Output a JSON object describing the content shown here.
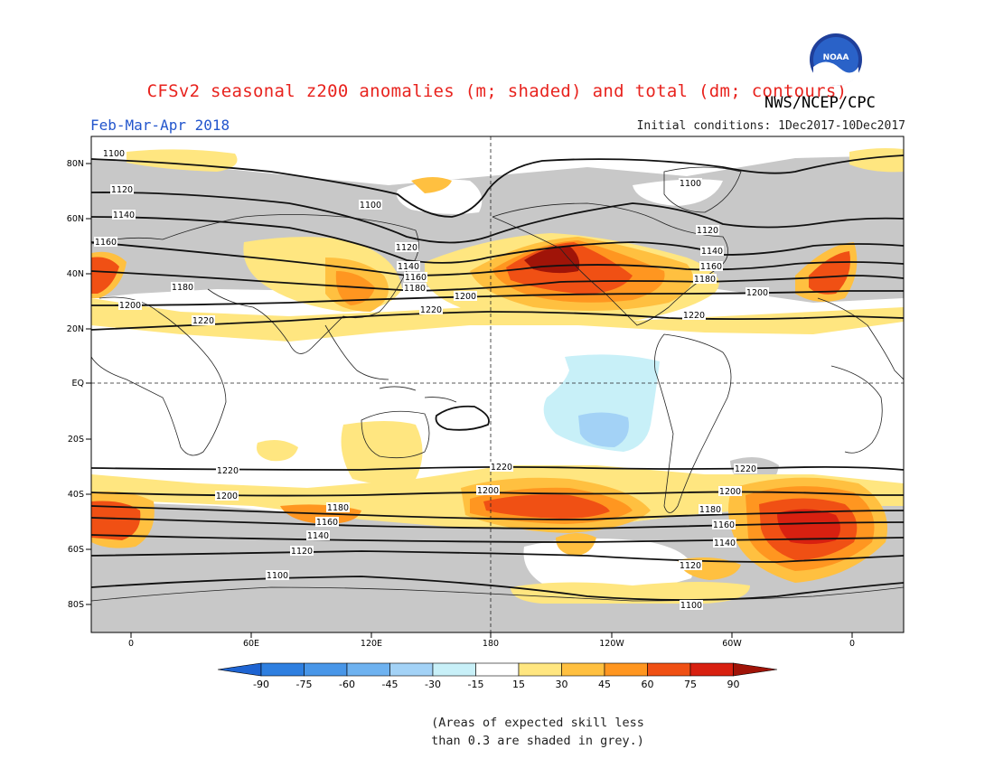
{
  "header": {
    "title": "CFSv2 seasonal z200 anomalies (m; shaded) and total (dm; contours)",
    "agency": "NWS/NCEP/CPC",
    "season": "Feb-Mar-Apr 2018",
    "initial_conditions": "Initial conditions: 1Dec2017-10Dec2017",
    "logo_text": "NOAA"
  },
  "map": {
    "lat_labels": [
      "80N",
      "60N",
      "40N",
      "20N",
      "EQ",
      "20S",
      "40S",
      "60S",
      "80S"
    ],
    "lon_labels": [
      "0",
      "60E",
      "120E",
      "180",
      "120W",
      "60W",
      "0"
    ],
    "contour_labels": [
      "1100",
      "1120",
      "1140",
      "1160",
      "1180",
      "1200",
      "1220"
    ]
  },
  "colorbar": {
    "ticks": [
      "-90",
      "-75",
      "-60",
      "-45",
      "-30",
      "-15",
      "15",
      "30",
      "45",
      "60",
      "75",
      "90"
    ],
    "colors": [
      "#1e64d2",
      "#2e7fe0",
      "#4896e8",
      "#6eb2f0",
      "#a3d2f6",
      "#c8f0f8",
      "#ffffff",
      "#ffe680",
      "#ffc040",
      "#ff9620",
      "#f05014",
      "#d82010",
      "#a01408"
    ]
  },
  "legend_note": "(Areas of expected skill less\nthan 0.3 are shaded in grey.)",
  "colors": {
    "skill_grey": "#c8c8c8",
    "title_red": "#e8231e",
    "season_blue": "#2255cc"
  }
}
